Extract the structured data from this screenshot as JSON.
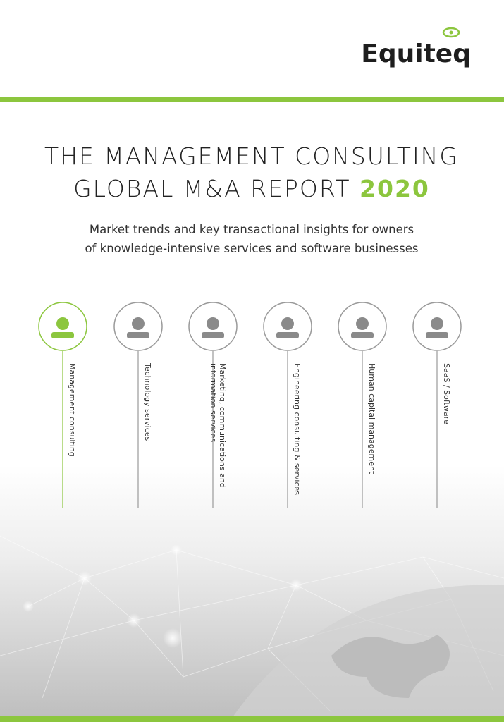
{
  "logo": "Equiteq",
  "title": {
    "line1": "THE MANAGEMENT CONSULTING",
    "line2": "GLOBAL M&A REPORT",
    "year": "2020"
  },
  "subtitle": [
    "Market trends and key transactional insights for owners",
    "of knowledge-intensive services and software businesses"
  ],
  "sectors": [
    {
      "lines": [
        "Management consulting"
      ]
    },
    {
      "lines": [
        "Technology services"
      ]
    },
    {
      "lines": [
        "Marketing, communications and",
        "information services"
      ]
    },
    {
      "lines": [
        "Engineering consulting & services"
      ]
    },
    {
      "lines": [
        "Human capital management"
      ]
    },
    {
      "lines": [
        "SaaS / Software"
      ]
    }
  ]
}
